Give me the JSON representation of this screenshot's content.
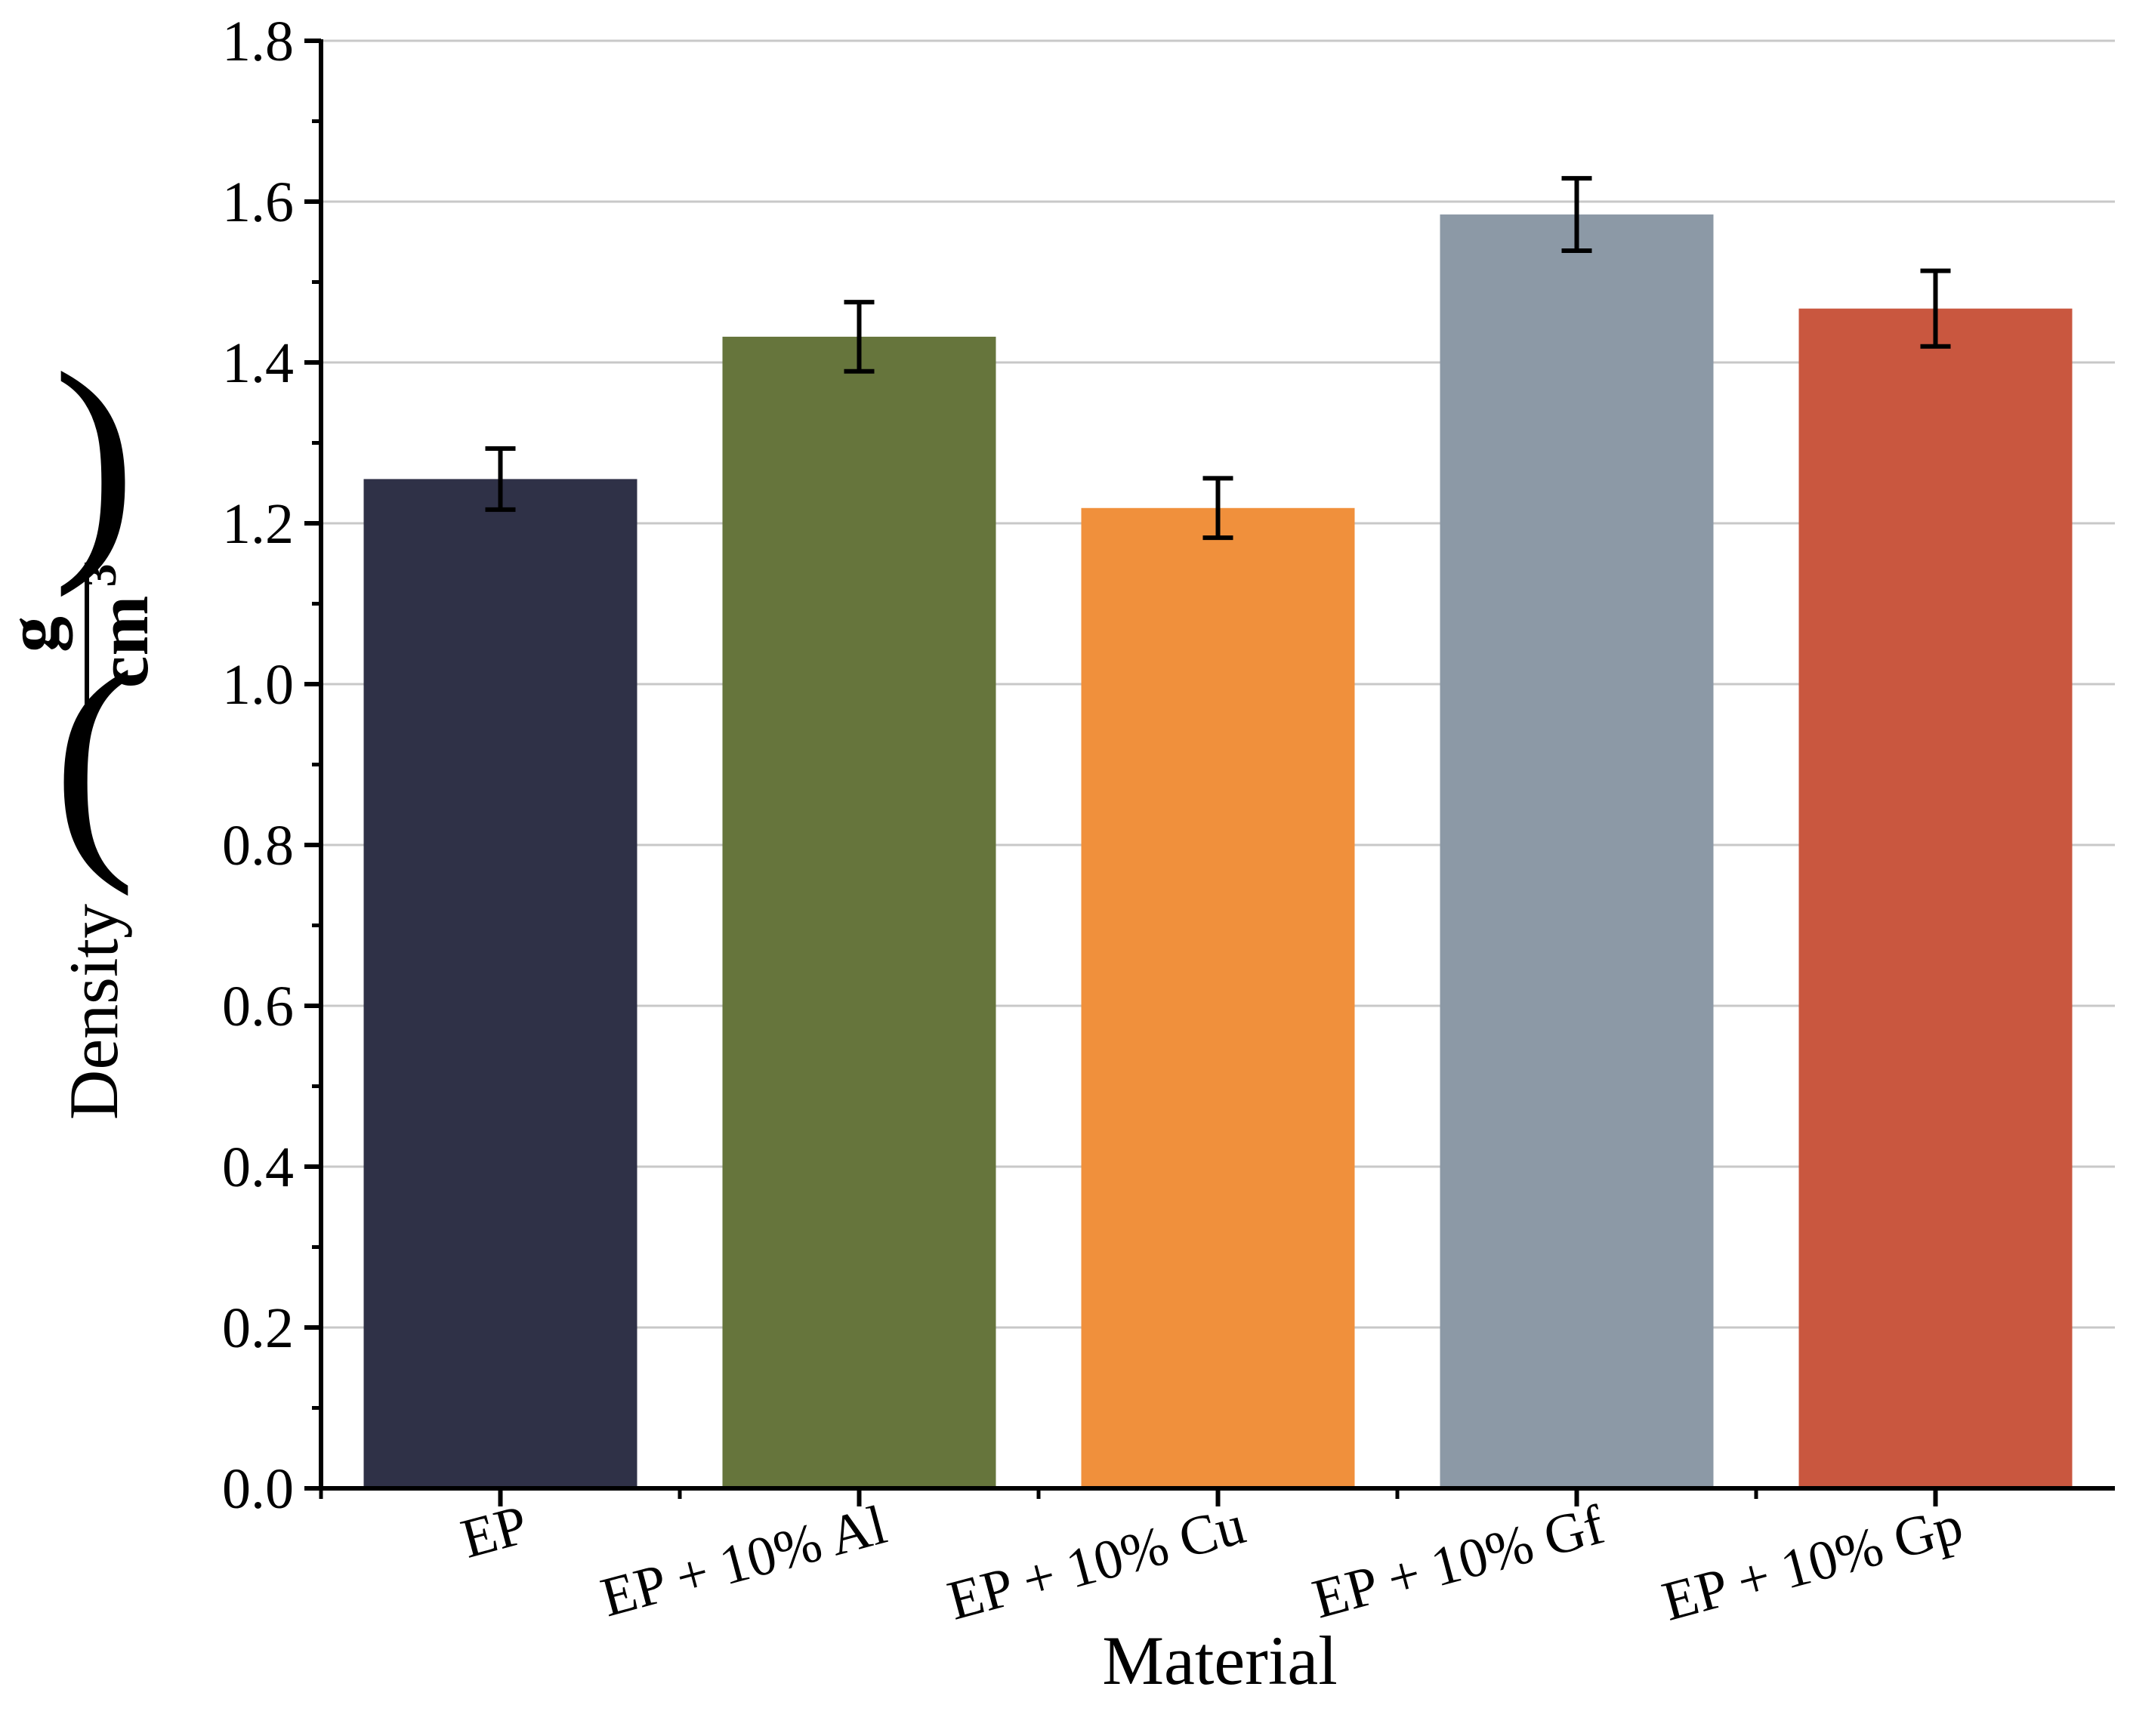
{
  "chart_data": {
    "type": "bar",
    "title": "",
    "xlabel": "Material",
    "ylabel": "Density",
    "ylabel_unit_numerator": "g",
    "ylabel_unit_denominator": "cm",
    "ylabel_unit_exponent": "3",
    "paren_left": "(",
    "paren_right": ")",
    "ylim": [
      0.0,
      1.8
    ],
    "grid": true,
    "yticks": [
      "0.0",
      "0.2",
      "0.4",
      "0.6",
      "0.8",
      "1.0",
      "1.2",
      "1.4",
      "1.6",
      "1.8"
    ],
    "categories": [
      "EP",
      "EP + 10% Al",
      "EP + 10% Cu",
      "EP + 10% Gf",
      "EP + 10% Gp"
    ],
    "values": [
      1.255,
      1.432,
      1.219,
      1.584,
      1.467
    ],
    "errors": [
      0.038,
      0.043,
      0.037,
      0.045,
      0.047
    ],
    "colors": [
      "#2f3147",
      "#66753c",
      "#f0903c",
      "#8c99a6",
      "#c9573f"
    ]
  }
}
